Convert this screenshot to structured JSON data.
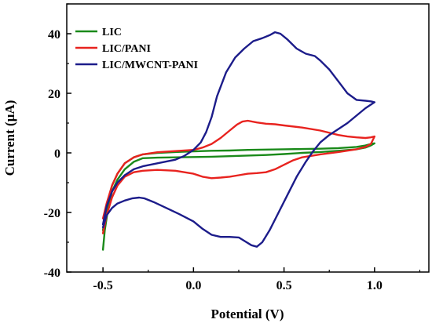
{
  "chart_data": {
    "type": "line",
    "title": "",
    "xlabel": "Potential (V)",
    "ylabel": "Current (µA)",
    "xlim": [
      -0.7,
      1.3
    ],
    "ylim": [
      -40,
      50
    ],
    "x_ticks": [
      "-0.5",
      "0.0",
      "0.5",
      "1.0"
    ],
    "y_ticks": [
      "-40",
      "-20",
      "0",
      "20",
      "40"
    ],
    "x_tick_values": [
      -0.5,
      0.0,
      0.5,
      1.0
    ],
    "y_tick_values": [
      -40,
      -20,
      0,
      20,
      40
    ],
    "legend_position": "top-left",
    "grid": false,
    "series": [
      {
        "name": "LIC",
        "color": "#1a8a1a",
        "points": [
          [
            -0.5,
            -32.5
          ],
          [
            -0.49,
            -26
          ],
          [
            -0.47,
            -18
          ],
          [
            -0.45,
            -13
          ],
          [
            -0.42,
            -9
          ],
          [
            -0.38,
            -5.5
          ],
          [
            -0.33,
            -3
          ],
          [
            -0.28,
            -1.8
          ],
          [
            -0.2,
            -1.6
          ],
          [
            -0.1,
            -1.5
          ],
          [
            0.0,
            -1.4
          ],
          [
            0.1,
            -1.3
          ],
          [
            0.2,
            -1.1
          ],
          [
            0.3,
            -0.9
          ],
          [
            0.4,
            -0.7
          ],
          [
            0.5,
            -0.4
          ],
          [
            0.6,
            0.0
          ],
          [
            0.7,
            0.3
          ],
          [
            0.8,
            0.7
          ],
          [
            0.9,
            1.2
          ],
          [
            0.95,
            1.8
          ],
          [
            0.98,
            2.5
          ],
          [
            1.0,
            3.2
          ],
          [
            0.98,
            3.0
          ],
          [
            0.95,
            2.5
          ],
          [
            0.9,
            2.0
          ],
          [
            0.8,
            1.6
          ],
          [
            0.7,
            1.4
          ],
          [
            0.6,
            1.3
          ],
          [
            0.5,
            1.2
          ],
          [
            0.4,
            1.1
          ],
          [
            0.3,
            1.0
          ],
          [
            0.2,
            0.8
          ],
          [
            0.1,
            0.7
          ],
          [
            0.0,
            0.5
          ],
          [
            -0.1,
            0.3
          ],
          [
            -0.2,
            0.0
          ],
          [
            -0.28,
            -0.5
          ],
          [
            -0.33,
            -1.5
          ],
          [
            -0.38,
            -3.5
          ],
          [
            -0.42,
            -7
          ],
          [
            -0.45,
            -11
          ],
          [
            -0.48,
            -18
          ],
          [
            -0.5,
            -26
          ]
        ]
      },
      {
        "name": "LIC/PANI",
        "color": "#e8231f",
        "points": [
          [
            -0.5,
            -27
          ],
          [
            -0.48,
            -21
          ],
          [
            -0.45,
            -15
          ],
          [
            -0.42,
            -11
          ],
          [
            -0.38,
            -8
          ],
          [
            -0.33,
            -6.5
          ],
          [
            -0.28,
            -6
          ],
          [
            -0.2,
            -5.7
          ],
          [
            -0.1,
            -6
          ],
          [
            0.0,
            -7
          ],
          [
            0.05,
            -8
          ],
          [
            0.1,
            -8.5
          ],
          [
            0.15,
            -8.3
          ],
          [
            0.2,
            -8
          ],
          [
            0.25,
            -7.5
          ],
          [
            0.3,
            -7
          ],
          [
            0.35,
            -6.8
          ],
          [
            0.4,
            -6.5
          ],
          [
            0.45,
            -5.5
          ],
          [
            0.5,
            -4
          ],
          [
            0.55,
            -2.5
          ],
          [
            0.6,
            -1.5
          ],
          [
            0.7,
            -0.5
          ],
          [
            0.8,
            0.3
          ],
          [
            0.9,
            1.2
          ],
          [
            0.95,
            2.0
          ],
          [
            0.98,
            3.0
          ],
          [
            1.0,
            5.5
          ],
          [
            0.98,
            5.2
          ],
          [
            0.95,
            5.0
          ],
          [
            0.9,
            5.2
          ],
          [
            0.85,
            5.5
          ],
          [
            0.8,
            6.0
          ],
          [
            0.7,
            7.5
          ],
          [
            0.6,
            8.5
          ],
          [
            0.5,
            9.2
          ],
          [
            0.45,
            9.6
          ],
          [
            0.4,
            9.8
          ],
          [
            0.35,
            10.2
          ],
          [
            0.3,
            10.8
          ],
          [
            0.27,
            10.5
          ],
          [
            0.24,
            9.5
          ],
          [
            0.2,
            7.5
          ],
          [
            0.15,
            5.0
          ],
          [
            0.1,
            3.0
          ],
          [
            0.05,
            1.8
          ],
          [
            0.0,
            1.0
          ],
          [
            -0.1,
            0.6
          ],
          [
            -0.2,
            0.2
          ],
          [
            -0.28,
            -0.5
          ],
          [
            -0.33,
            -1.5
          ],
          [
            -0.38,
            -3.5
          ],
          [
            -0.42,
            -7
          ],
          [
            -0.45,
            -11
          ],
          [
            -0.48,
            -17
          ],
          [
            -0.5,
            -22
          ]
        ]
      },
      {
        "name": "LIC/MWCNT-PANI",
        "color": "#1c1c8a",
        "points": [
          [
            -0.5,
            -25
          ],
          [
            -0.48,
            -21
          ],
          [
            -0.45,
            -18.5
          ],
          [
            -0.42,
            -17
          ],
          [
            -0.38,
            -16
          ],
          [
            -0.34,
            -15.3
          ],
          [
            -0.3,
            -15.0
          ],
          [
            -0.27,
            -15.3
          ],
          [
            -0.22,
            -16.5
          ],
          [
            -0.15,
            -18.5
          ],
          [
            -0.08,
            -20.5
          ],
          [
            0.0,
            -23
          ],
          [
            0.05,
            -25.5
          ],
          [
            0.1,
            -27.5
          ],
          [
            0.15,
            -28.2
          ],
          [
            0.2,
            -28.2
          ],
          [
            0.25,
            -28.4
          ],
          [
            0.28,
            -29.5
          ],
          [
            0.32,
            -31
          ],
          [
            0.35,
            -31.5
          ],
          [
            0.38,
            -30
          ],
          [
            0.42,
            -26
          ],
          [
            0.47,
            -20
          ],
          [
            0.52,
            -14
          ],
          [
            0.57,
            -8
          ],
          [
            0.62,
            -3
          ],
          [
            0.66,
            0.5
          ],
          [
            0.7,
            3.5
          ],
          [
            0.75,
            6
          ],
          [
            0.8,
            8
          ],
          [
            0.85,
            10
          ],
          [
            0.9,
            12.5
          ],
          [
            0.95,
            15
          ],
          [
            1.0,
            17
          ],
          [
            0.98,
            17.3
          ],
          [
            0.95,
            17.5
          ],
          [
            0.9,
            17.8
          ],
          [
            0.85,
            20
          ],
          [
            0.8,
            24
          ],
          [
            0.75,
            28
          ],
          [
            0.7,
            31
          ],
          [
            0.67,
            32.5
          ],
          [
            0.62,
            33.3
          ],
          [
            0.57,
            35
          ],
          [
            0.52,
            38
          ],
          [
            0.48,
            40
          ],
          [
            0.45,
            40.5
          ],
          [
            0.42,
            39.5
          ],
          [
            0.38,
            38.5
          ],
          [
            0.33,
            37.5
          ],
          [
            0.28,
            35
          ],
          [
            0.23,
            32
          ],
          [
            0.18,
            27
          ],
          [
            0.13,
            19
          ],
          [
            0.1,
            12
          ],
          [
            0.07,
            7
          ],
          [
            0.04,
            3.5
          ],
          [
            0.0,
            1
          ],
          [
            -0.05,
            -1
          ],
          [
            -0.1,
            -2.3
          ],
          [
            -0.2,
            -3.5
          ],
          [
            -0.28,
            -4.5
          ],
          [
            -0.33,
            -5.5
          ],
          [
            -0.38,
            -7.5
          ],
          [
            -0.42,
            -10
          ],
          [
            -0.45,
            -13
          ],
          [
            -0.48,
            -18
          ],
          [
            -0.5,
            -24
          ]
        ]
      }
    ]
  }
}
